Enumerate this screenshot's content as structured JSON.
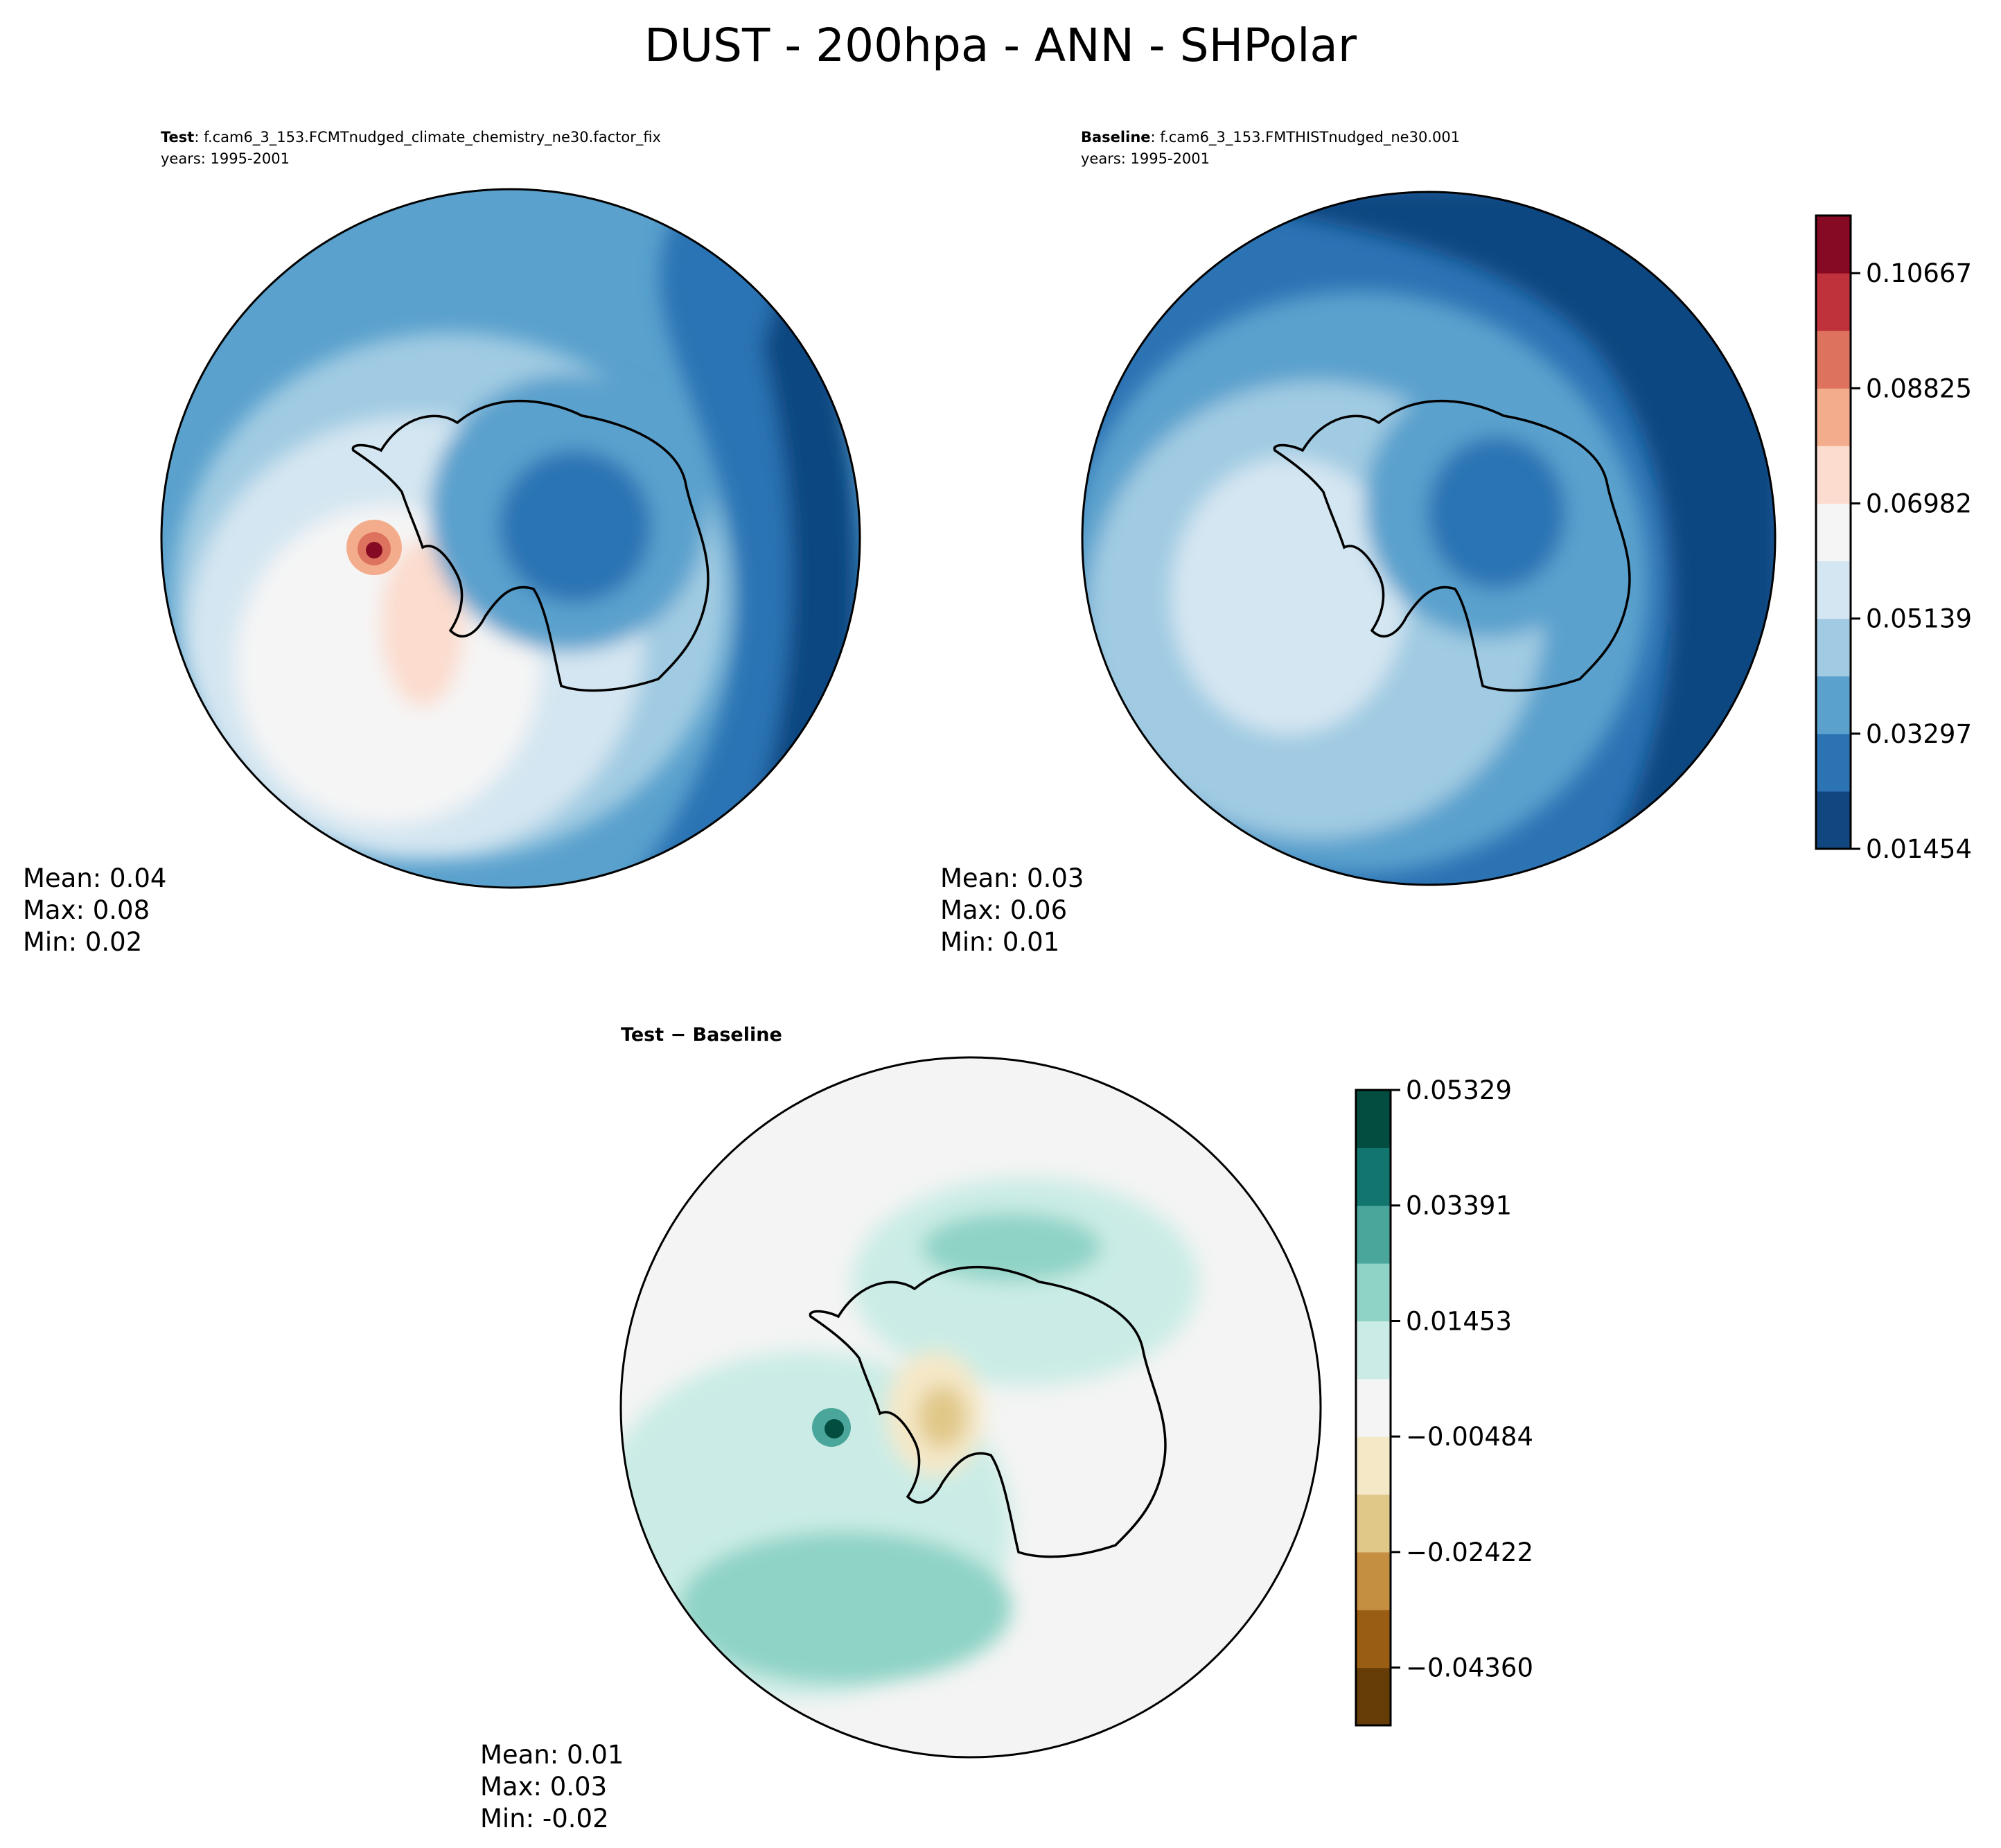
{
  "title": "DUST - 200hpa - ANN - SHPolar",
  "panels": [
    {
      "title_bold": "Test",
      "title_rest": ": f.cam6_3_153.FCMTnudged_climate_chemistry_ne30.factor_fix",
      "years": "years: 1995-2001",
      "stats": [
        "Mean:  0.04",
        "Max:  0.08",
        "Min:  0.02"
      ]
    },
    {
      "title_bold": "Baseline",
      "title_rest": ": f.cam6_3_153.FMTHISTnudged_ne30.001",
      "years": "years: 1995-2001",
      "stats": [
        "Mean:  0.03",
        "Max:  0.06",
        "Min:  0.01"
      ]
    },
    {
      "title_bold": "Test − Baseline",
      "title_rest": "",
      "years": "",
      "stats": [
        "Mean:  0.01",
        "Max:  0.03",
        "Min: -0.02"
      ]
    }
  ],
  "chart_data": [
    {
      "type": "heatmap",
      "name": "Test",
      "projection": "south-polar-stereographic",
      "colorbar": {
        "ticks": [
          "0.01454",
          "0.03297",
          "0.05139",
          "0.06982",
          "0.08825",
          "0.10667"
        ],
        "tick_values": [
          0.01454,
          0.03297,
          0.05139,
          0.06982,
          0.08825,
          0.10667
        ],
        "range": [
          0.01454,
          0.1159
        ],
        "colors": [
          "#114781",
          "#2c73b4",
          "#5aa1cd",
          "#a0cbe2",
          "#d4e6f1",
          "#f5f5f5",
          "#fcdcce",
          "#f4ad8c",
          "#dd735f",
          "#c0323b",
          "#870a24"
        ]
      },
      "mean": 0.04,
      "max": 0.08,
      "min": 0.02
    },
    {
      "type": "heatmap",
      "name": "Baseline",
      "projection": "south-polar-stereographic",
      "colorbar": "shared with Test",
      "mean": 0.03,
      "max": 0.06,
      "min": 0.01
    },
    {
      "type": "heatmap",
      "name": "Test - Baseline",
      "projection": "south-polar-stereographic",
      "colorbar": {
        "ticks": [
          "0.05329",
          "0.03391",
          "0.01453",
          "−0.00484",
          "−0.02422",
          "−0.04360"
        ],
        "tick_values": [
          0.05329,
          0.03391,
          0.01453,
          -0.00484,
          -0.02422,
          -0.0436
        ],
        "range": [
          -0.05329,
          0.05329
        ],
        "colors": [
          "#673d07",
          "#995d14",
          "#c58f42",
          "#e0c888",
          "#f5e8c7",
          "#f3f4f3",
          "#cbece6",
          "#8ed3c6",
          "#4aa69b",
          "#12756e",
          "#024c40"
        ]
      },
      "mean": 0.01,
      "max": 0.03,
      "min": -0.02
    }
  ]
}
